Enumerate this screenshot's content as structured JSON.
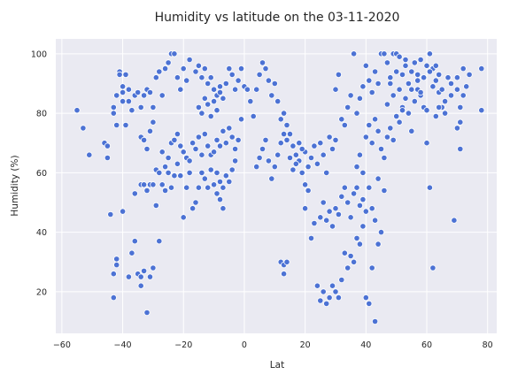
{
  "chart_data": {
    "type": "scatter",
    "title": "Humidity vs latitude on the 03-11-2020",
    "xlabel": "Lat",
    "ylabel": "Humidity (%)",
    "xlim": [
      -62,
      83
    ],
    "ylim": [
      6,
      105
    ],
    "xticks": [
      -60,
      -40,
      -20,
      0,
      20,
      40,
      60,
      80
    ],
    "yticks": [
      20,
      40,
      60,
      80,
      100
    ],
    "grid": true,
    "legend": "none",
    "colors": {
      "points": "#4c72d4",
      "background": "#eaeaf2",
      "grid": "#ffffff"
    },
    "points": [
      [
        -55,
        81
      ],
      [
        -53,
        75
      ],
      [
        -51,
        66
      ],
      [
        -46,
        70
      ],
      [
        -45,
        69
      ],
      [
        -45,
        65
      ],
      [
        -44,
        46
      ],
      [
        -43,
        82
      ],
      [
        -43,
        80
      ],
      [
        -42,
        86
      ],
      [
        -42,
        76
      ],
      [
        -41,
        94
      ],
      [
        -41,
        93
      ],
      [
        -40,
        89
      ],
      [
        -40,
        87
      ],
      [
        -40,
        84
      ],
      [
        -39,
        93
      ],
      [
        -39,
        76
      ],
      [
        -38,
        88
      ],
      [
        -38,
        84
      ],
      [
        -37,
        81
      ],
      [
        -36,
        86
      ],
      [
        -35,
        87
      ],
      [
        -34,
        82
      ],
      [
        -33,
        86
      ],
      [
        -32,
        88
      ],
      [
        -31,
        87
      ],
      [
        -30,
        82
      ],
      [
        -29,
        92
      ],
      [
        -28,
        94
      ],
      [
        -27,
        86
      ],
      [
        -26,
        95
      ],
      [
        -25,
        97
      ],
      [
        -24,
        100
      ],
      [
        -23,
        100
      ],
      [
        -22,
        92
      ],
      [
        -21,
        88
      ],
      [
        -20,
        95
      ],
      [
        -19,
        91
      ],
      [
        -18,
        98
      ],
      [
        -42,
        29
      ],
      [
        -42,
        31
      ],
      [
        -43,
        26
      ],
      [
        -43,
        18
      ],
      [
        -40,
        47
      ],
      [
        -38,
        25
      ],
      [
        -37,
        33
      ],
      [
        -36,
        37
      ],
      [
        -35,
        26
      ],
      [
        -34,
        25
      ],
      [
        -34,
        22
      ],
      [
        -33,
        27
      ],
      [
        -32,
        13
      ],
      [
        -31,
        25
      ],
      [
        -30,
        28
      ],
      [
        -28,
        37
      ],
      [
        -36,
        53
      ],
      [
        -34,
        56
      ],
      [
        -33,
        56
      ],
      [
        -32,
        54
      ],
      [
        -31,
        56
      ],
      [
        -30,
        56
      ],
      [
        -29,
        49
      ],
      [
        -27,
        56
      ],
      [
        -26,
        54
      ],
      [
        -25,
        60
      ],
      [
        -24,
        55
      ],
      [
        -23,
        59
      ],
      [
        -22,
        63
      ],
      [
        -21,
        59
      ],
      [
        -20,
        45
      ],
      [
        -19,
        55
      ],
      [
        -18,
        60
      ],
      [
        -17,
        48
      ],
      [
        -16,
        50
      ],
      [
        -15,
        55
      ],
      [
        -14,
        60
      ],
      [
        -13,
        58
      ],
      [
        -12,
        55
      ],
      [
        -11,
        61
      ],
      [
        -10,
        56
      ],
      [
        -9,
        60
      ],
      [
        -8,
        57
      ],
      [
        -34,
        72
      ],
      [
        -33,
        71
      ],
      [
        -32,
        68
      ],
      [
        -31,
        74
      ],
      [
        -30,
        77
      ],
      [
        -29,
        61
      ],
      [
        -28,
        60
      ],
      [
        -27,
        67
      ],
      [
        -26,
        62
      ],
      [
        -25,
        65
      ],
      [
        -24,
        70
      ],
      [
        -23,
        71
      ],
      [
        -22,
        73
      ],
      [
        -21,
        69
      ],
      [
        -20,
        67
      ],
      [
        -19,
        65
      ],
      [
        -18,
        64
      ],
      [
        -17,
        70
      ],
      [
        -16,
        68
      ],
      [
        -15,
        72
      ],
      [
        -14,
        66
      ],
      [
        -13,
        73
      ],
      [
        -12,
        69
      ],
      [
        -11,
        66
      ],
      [
        -10,
        67
      ],
      [
        -9,
        71
      ],
      [
        -8,
        69
      ],
      [
        -7,
        74
      ],
      [
        -6,
        70
      ],
      [
        -5,
        75
      ],
      [
        -4,
        72
      ],
      [
        -3,
        68
      ],
      [
        -2,
        71
      ],
      [
        -1,
        78
      ],
      [
        -16,
        94
      ],
      [
        -15,
        96
      ],
      [
        -14,
        92
      ],
      [
        -13,
        95
      ],
      [
        -12,
        90
      ],
      [
        -11,
        92
      ],
      [
        -10,
        88
      ],
      [
        -9,
        86
      ],
      [
        -8,
        89
      ],
      [
        -7,
        85
      ],
      [
        -6,
        90
      ],
      [
        -5,
        95
      ],
      [
        -4,
        93
      ],
      [
        -3,
        88
      ],
      [
        -2,
        91
      ],
      [
        -1,
        95
      ],
      [
        0,
        89
      ],
      [
        1,
        88
      ],
      [
        -15,
        82
      ],
      [
        -14,
        80
      ],
      [
        -13,
        85
      ],
      [
        -12,
        83
      ],
      [
        -11,
        79
      ],
      [
        -10,
        84
      ],
      [
        -9,
        81
      ],
      [
        -8,
        87
      ],
      [
        -9,
        53
      ],
      [
        -8,
        51
      ],
      [
        -7,
        55
      ],
      [
        -6,
        59
      ],
      [
        -5,
        57
      ],
      [
        -4,
        61
      ],
      [
        -3,
        64
      ],
      [
        -7,
        48
      ],
      [
        2,
        84
      ],
      [
        3,
        79
      ],
      [
        4,
        88
      ],
      [
        5,
        93
      ],
      [
        6,
        97
      ],
      [
        7,
        95
      ],
      [
        8,
        91
      ],
      [
        9,
        86
      ],
      [
        10,
        90
      ],
      [
        11,
        84
      ],
      [
        12,
        78
      ],
      [
        13,
        80
      ],
      [
        14,
        76
      ],
      [
        15,
        73
      ],
      [
        16,
        69
      ],
      [
        17,
        66
      ],
      [
        18,
        64
      ],
      [
        19,
        60
      ],
      [
        20,
        67
      ],
      [
        4,
        62
      ],
      [
        5,
        65
      ],
      [
        6,
        68
      ],
      [
        7,
        71
      ],
      [
        8,
        64
      ],
      [
        9,
        58
      ],
      [
        10,
        62
      ],
      [
        11,
        66
      ],
      [
        12,
        70
      ],
      [
        13,
        73
      ],
      [
        14,
        71
      ],
      [
        15,
        65
      ],
      [
        16,
        61
      ],
      [
        17,
        63
      ],
      [
        18,
        70
      ],
      [
        19,
        68
      ],
      [
        20,
        56
      ],
      [
        21,
        62
      ],
      [
        22,
        65
      ],
      [
        23,
        69
      ],
      [
        24,
        63
      ],
      [
        25,
        70
      ],
      [
        26,
        66
      ],
      [
        27,
        60
      ],
      [
        28,
        72
      ],
      [
        29,
        68
      ],
      [
        30,
        71
      ],
      [
        12,
        30
      ],
      [
        13,
        29
      ],
      [
        14,
        30
      ],
      [
        13,
        26
      ],
      [
        20,
        48
      ],
      [
        21,
        54
      ],
      [
        22,
        38
      ],
      [
        23,
        43
      ],
      [
        24,
        22
      ],
      [
        25,
        17
      ],
      [
        26,
        20
      ],
      [
        27,
        16
      ],
      [
        28,
        18
      ],
      [
        29,
        22
      ],
      [
        30,
        20
      ],
      [
        31,
        18
      ],
      [
        32,
        24
      ],
      [
        33,
        33
      ],
      [
        34,
        28
      ],
      [
        35,
        32
      ],
      [
        36,
        30
      ],
      [
        37,
        38
      ],
      [
        38,
        36
      ],
      [
        39,
        42
      ],
      [
        40,
        18
      ],
      [
        41,
        16
      ],
      [
        42,
        28
      ],
      [
        43,
        10
      ],
      [
        44,
        36
      ],
      [
        45,
        40
      ],
      [
        25,
        45
      ],
      [
        26,
        50
      ],
      [
        27,
        44
      ],
      [
        28,
        47
      ],
      [
        29,
        42
      ],
      [
        30,
        48
      ],
      [
        31,
        46
      ],
      [
        32,
        52
      ],
      [
        33,
        55
      ],
      [
        34,
        50
      ],
      [
        35,
        45
      ],
      [
        36,
        53
      ],
      [
        37,
        55
      ],
      [
        38,
        49
      ],
      [
        39,
        51
      ],
      [
        40,
        47
      ],
      [
        41,
        55
      ],
      [
        42,
        48
      ],
      [
        43,
        44
      ],
      [
        44,
        58
      ],
      [
        30,
        88
      ],
      [
        31,
        93
      ],
      [
        32,
        78
      ],
      [
        33,
        76
      ],
      [
        34,
        82
      ],
      [
        35,
        86
      ],
      [
        36,
        100
      ],
      [
        37,
        80
      ],
      [
        38,
        85
      ],
      [
        39,
        89
      ],
      [
        40,
        96
      ],
      [
        41,
        91
      ],
      [
        42,
        87
      ],
      [
        43,
        94
      ],
      [
        44,
        90
      ],
      [
        45,
        100
      ],
      [
        46,
        100
      ],
      [
        47,
        97
      ],
      [
        48,
        92
      ],
      [
        49,
        100
      ],
      [
        50,
        100
      ],
      [
        51,
        99
      ],
      [
        52,
        93
      ],
      [
        53,
        98
      ],
      [
        54,
        90
      ],
      [
        55,
        94
      ],
      [
        56,
        97
      ],
      [
        57,
        88
      ],
      [
        58,
        86
      ],
      [
        59,
        92
      ],
      [
        60,
        96
      ],
      [
        61,
        100
      ],
      [
        62,
        95
      ],
      [
        63,
        91
      ],
      [
        64,
        87
      ],
      [
        65,
        82
      ],
      [
        37,
        62
      ],
      [
        38,
        66
      ],
      [
        39,
        60
      ],
      [
        40,
        72
      ],
      [
        41,
        76
      ],
      [
        42,
        70
      ],
      [
        43,
        78
      ],
      [
        44,
        74
      ],
      [
        45,
        68
      ],
      [
        46,
        65
      ],
      [
        47,
        72
      ],
      [
        48,
        75
      ],
      [
        49,
        71
      ],
      [
        50,
        79
      ],
      [
        51,
        77
      ],
      [
        52,
        82
      ],
      [
        53,
        85
      ],
      [
        54,
        80
      ],
      [
        55,
        88
      ],
      [
        56,
        84
      ],
      [
        57,
        91
      ],
      [
        58,
        87
      ],
      [
        59,
        82
      ],
      [
        60,
        70
      ],
      [
        61,
        55
      ],
      [
        62,
        28
      ],
      [
        61,
        94
      ],
      [
        62,
        89
      ],
      [
        63,
        96
      ],
      [
        64,
        82
      ],
      [
        65,
        88
      ],
      [
        66,
        80
      ],
      [
        67,
        92
      ],
      [
        68,
        86
      ],
      [
        69,
        44
      ],
      [
        70,
        88
      ],
      [
        70,
        75
      ],
      [
        71,
        82
      ],
      [
        71,
        68
      ],
      [
        72,
        95
      ],
      [
        73,
        89
      ],
      [
        74,
        93
      ],
      [
        78,
        81
      ],
      [
        78,
        95
      ],
      [
        46,
        54
      ],
      [
        47,
        83
      ],
      [
        48,
        90
      ],
      [
        49,
        86
      ],
      [
        50,
        94
      ],
      [
        51,
        88
      ],
      [
        52,
        81
      ],
      [
        53,
        96
      ],
      [
        55,
        74
      ],
      [
        57,
        93
      ],
      [
        58,
        98
      ],
      [
        60,
        81
      ],
      [
        63,
        79
      ],
      [
        64,
        93
      ],
      [
        66,
        84
      ],
      [
        68,
        90
      ],
      [
        70,
        92
      ],
      [
        71,
        77
      ],
      [
        72,
        86
      ]
    ]
  }
}
